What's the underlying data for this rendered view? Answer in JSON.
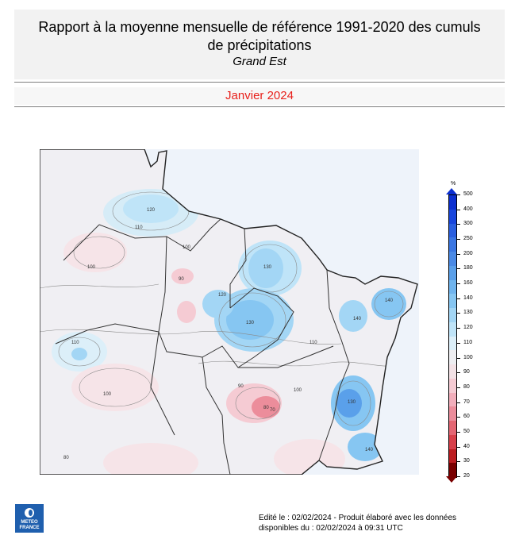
{
  "header": {
    "title_line1": "Rapport à la moyenne mensuelle de référence 1991-2020 des cumuls",
    "title_line2": "de précipitations",
    "region": "Grand Est",
    "period": "Janvier 2024"
  },
  "legend": {
    "unit": "%",
    "levels": [
      "500",
      "400",
      "300",
      "250",
      "200",
      "180",
      "160",
      "140",
      "130",
      "120",
      "110",
      "100",
      "90",
      "80",
      "70",
      "60",
      "50",
      "40",
      "30",
      "20"
    ],
    "colors": [
      "#0b2fd0",
      "#1846dd",
      "#2a5fe0",
      "#3a76e3",
      "#4a8ae6",
      "#5aa0ea",
      "#6fb4ee",
      "#86c6f2",
      "#a3d6f5",
      "#bfe4f8",
      "#dceff9",
      "#eeeef1",
      "#f3e2e6",
      "#f5cbd3",
      "#f2aebb",
      "#ec8d9b",
      "#e46673",
      "#d8404a",
      "#bc1c20",
      "#7a0000"
    ]
  },
  "map": {
    "contour_labels": [
      "120",
      "110",
      "100",
      "90",
      "130",
      "140",
      "80",
      "110",
      "100",
      "130",
      "90",
      "100",
      "130",
      "140",
      "100",
      "120",
      "70",
      "140",
      "80",
      "110"
    ]
  },
  "footer": {
    "line1": "Edité le : 02/02/2024 - Produit élaboré avec les données",
    "line2": "disponibles du : 02/02/2024 à 09:31 UTC"
  },
  "logo": {
    "line1": "METEO",
    "line2": "FRANCE"
  }
}
